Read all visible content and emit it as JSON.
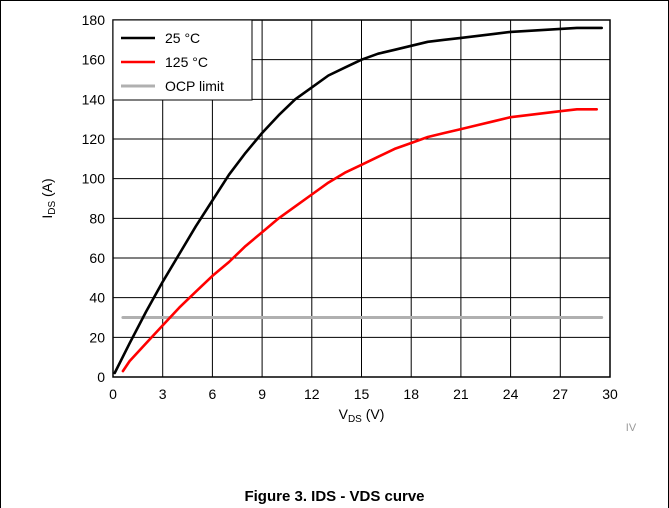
{
  "chart_data": {
    "type": "line",
    "xlabel": {
      "main": "V",
      "sub": "DS",
      "unit": " (V)"
    },
    "ylabel": {
      "main": "I",
      "sub": "DS",
      "unit": " (A)"
    },
    "xlim": [
      0,
      30
    ],
    "ylim": [
      0,
      180
    ],
    "xticks": [
      0,
      3,
      6,
      9,
      12,
      15,
      18,
      21,
      24,
      27,
      30
    ],
    "yticks": [
      0,
      20,
      40,
      60,
      80,
      100,
      120,
      140,
      160,
      180
    ],
    "grid": true,
    "legend_position": "top-left",
    "series": [
      {
        "name": "25 °C",
        "color": "#000000",
        "x": [
          0.1,
          1,
          2,
          3,
          4,
          5,
          6,
          7,
          8,
          9,
          10,
          11,
          12,
          13,
          14,
          15,
          16,
          17,
          18,
          19,
          20,
          21,
          22,
          23,
          24,
          25,
          26,
          27,
          28,
          29.5
        ],
        "y": [
          2,
          17,
          33,
          48,
          62,
          76,
          89,
          102,
          113,
          123,
          132,
          140,
          146,
          152,
          156,
          160,
          163,
          165,
          167,
          169,
          170,
          171,
          172,
          173,
          174,
          174.5,
          175,
          175.5,
          176,
          176
        ]
      },
      {
        "name": "125 °C",
        "color": "#ff0000",
        "x": [
          0.6,
          1,
          2,
          3,
          4,
          5,
          6,
          7,
          8,
          9,
          10,
          11,
          12,
          13,
          14,
          15,
          16,
          17,
          18,
          19,
          20,
          21,
          22,
          23,
          24,
          25,
          26,
          27,
          28,
          29.2
        ],
        "y": [
          3,
          8,
          17,
          26,
          35,
          43,
          51,
          58,
          66,
          73,
          80,
          86,
          92,
          98,
          103,
          107,
          111,
          115,
          118,
          121,
          123,
          125,
          127,
          129,
          131,
          132,
          133,
          134,
          135,
          135
        ]
      },
      {
        "name": "OCP limit",
        "color": "#b0b0b0",
        "x": [
          0.6,
          29.5
        ],
        "y": [
          30,
          30
        ]
      }
    ]
  },
  "watermark": "IV",
  "caption": "Figure 3. IDS - VDS curve"
}
